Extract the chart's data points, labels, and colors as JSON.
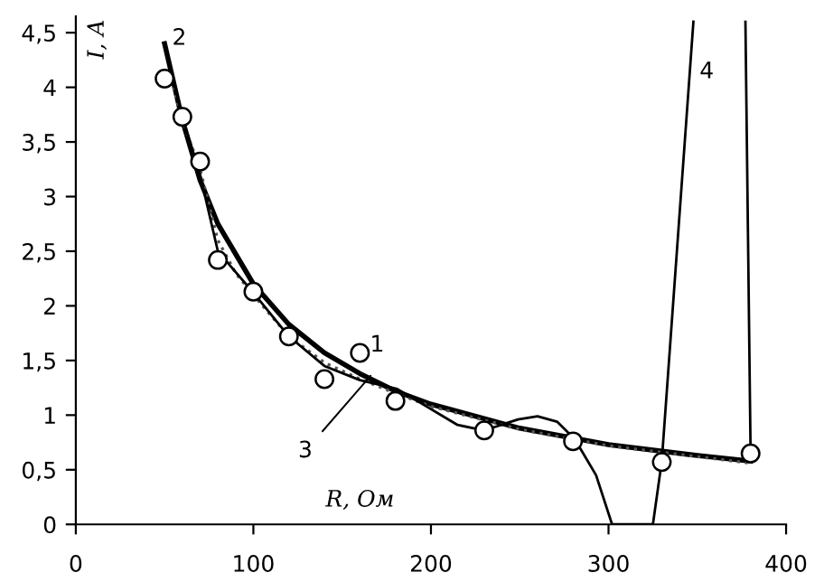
{
  "chart_data": {
    "type": "line",
    "xlabel": "R, Ом",
    "ylabel": "I, A",
    "xlim": [
      0,
      400
    ],
    "ylim": [
      0,
      4.65
    ],
    "xticks": [
      0,
      100,
      200,
      300,
      400
    ],
    "yticks": [
      0,
      {
        "value": 0.5,
        "label": "0,5"
      },
      1,
      {
        "value": 1.5,
        "label": "1,5"
      },
      2,
      {
        "value": 2.5,
        "label": "2,5"
      },
      3,
      {
        "value": 3.5,
        "label": "3,5"
      },
      4,
      {
        "value": 4.5,
        "label": "4,5"
      }
    ],
    "grid": false,
    "legend": false,
    "series": [
      {
        "type": "scatter",
        "marker": "circle",
        "color": "#000000",
        "x": [
          50,
          60,
          70,
          80,
          100,
          120,
          140,
          160,
          180,
          230,
          280,
          330,
          380
        ],
        "values": [
          4.08,
          3.73,
          3.32,
          2.42,
          2.13,
          1.72,
          1.33,
          1.57,
          1.13,
          0.86,
          0.76,
          0.57,
          0.65
        ]
      },
      {
        "line_style": "solid",
        "color": "#000000",
        "x": [
          50,
          60,
          70,
          80,
          100,
          120,
          140,
          160,
          180,
          200,
          250,
          300,
          350,
          380
        ],
        "values": [
          4.4,
          3.7,
          3.15,
          2.75,
          2.2,
          1.83,
          1.57,
          1.38,
          1.22,
          1.1,
          0.88,
          0.73,
          0.63,
          0.58
        ]
      },
      {
        "line_style": "dotted",
        "color": "#555555",
        "x": [
          55,
          60,
          70,
          80,
          90,
          100,
          120,
          140,
          160,
          180,
          200,
          250,
          300,
          350,
          380
        ],
        "values": [
          4.0,
          3.7,
          3.25,
          2.6,
          2.3,
          2.1,
          1.72,
          1.48,
          1.33,
          1.2,
          1.08,
          0.87,
          0.72,
          0.62,
          0.56
        ]
      },
      {
        "line_style": "solid",
        "color": "#000000",
        "x": [
          50,
          60,
          70,
          80,
          100,
          120,
          140,
          160,
          181,
          215,
          230,
          249,
          260,
          271,
          281,
          293,
          302,
          325,
          330,
          347.8,
          362,
          377.1,
          380
        ],
        "values": [
          4.4,
          3.72,
          3.2,
          2.5,
          2.12,
          1.72,
          1.45,
          1.32,
          1.24,
          0.91,
          0.86,
          0.96,
          0.99,
          0.94,
          0.78,
          0.45,
          0,
          0,
          0.58,
          4.6,
          null,
          4.6,
          0.66
        ]
      }
    ],
    "annotations": [
      {
        "text": "1",
        "x": 160,
        "y": 1.57
      },
      {
        "text": "2",
        "x": 50,
        "y": 4.4
      },
      {
        "text": "3",
        "x": 166,
        "y": 1.36
      },
      {
        "text": "4",
        "x": 345.6,
        "y": 4.14
      }
    ]
  }
}
